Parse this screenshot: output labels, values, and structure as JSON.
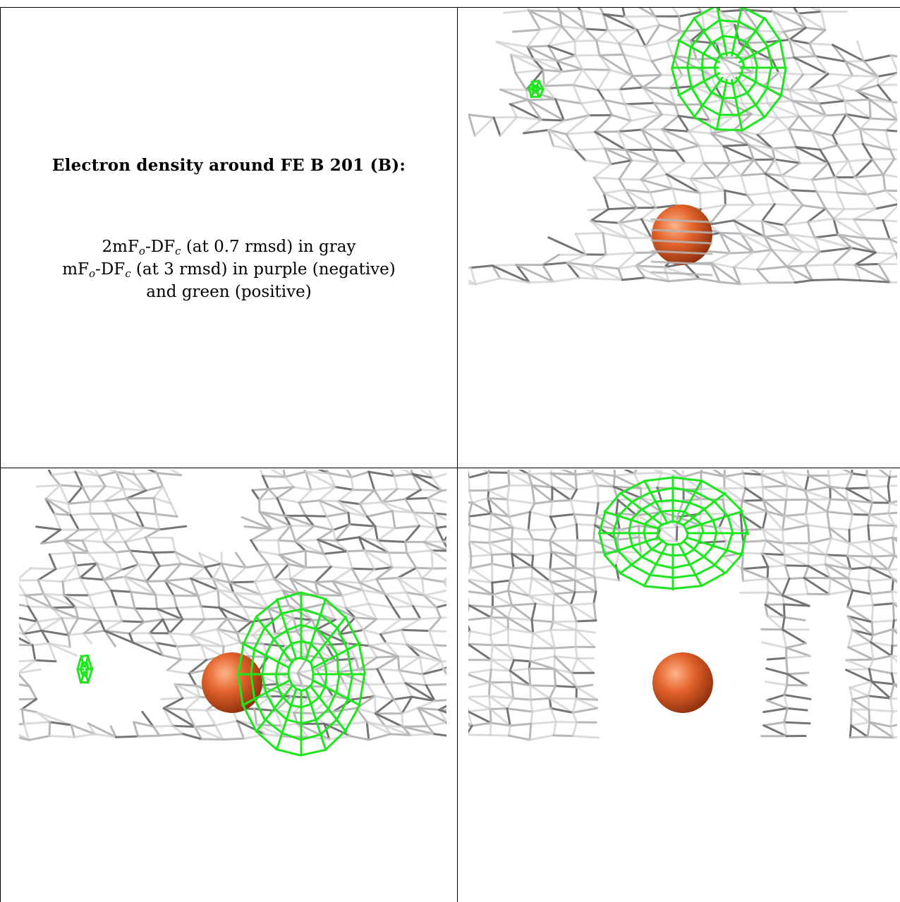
{
  "figure": {
    "title": "Electron density around FE B 201 (B):",
    "legend": {
      "line1_a": "2mF",
      "line1_sub1": "o",
      "line1_b": "-DF",
      "line1_sub2": "c",
      "line1_c": " (at 0.7 rmsd) in gray",
      "line2_a": "mF",
      "line2_sub1": "o",
      "line2_b": "-DF",
      "line2_sub2": "c",
      "line2_c": " (at 3 rmsd) in purple (negative)",
      "line3": "and green (positive)"
    }
  },
  "colors": {
    "map_2fofc": "#b4b4b4",
    "map_2fofc_dark": "#6e6e6e",
    "map_fofc_positive": "#1ee61e",
    "atom_fe": "#e2622a",
    "background": "#ffffff",
    "border": "#000000"
  },
  "panels": [
    {
      "view": "top-right",
      "atom": "FE"
    },
    {
      "view": "bottom-left",
      "atom": "FE"
    },
    {
      "view": "bottom-right",
      "atom": "FE"
    }
  ]
}
